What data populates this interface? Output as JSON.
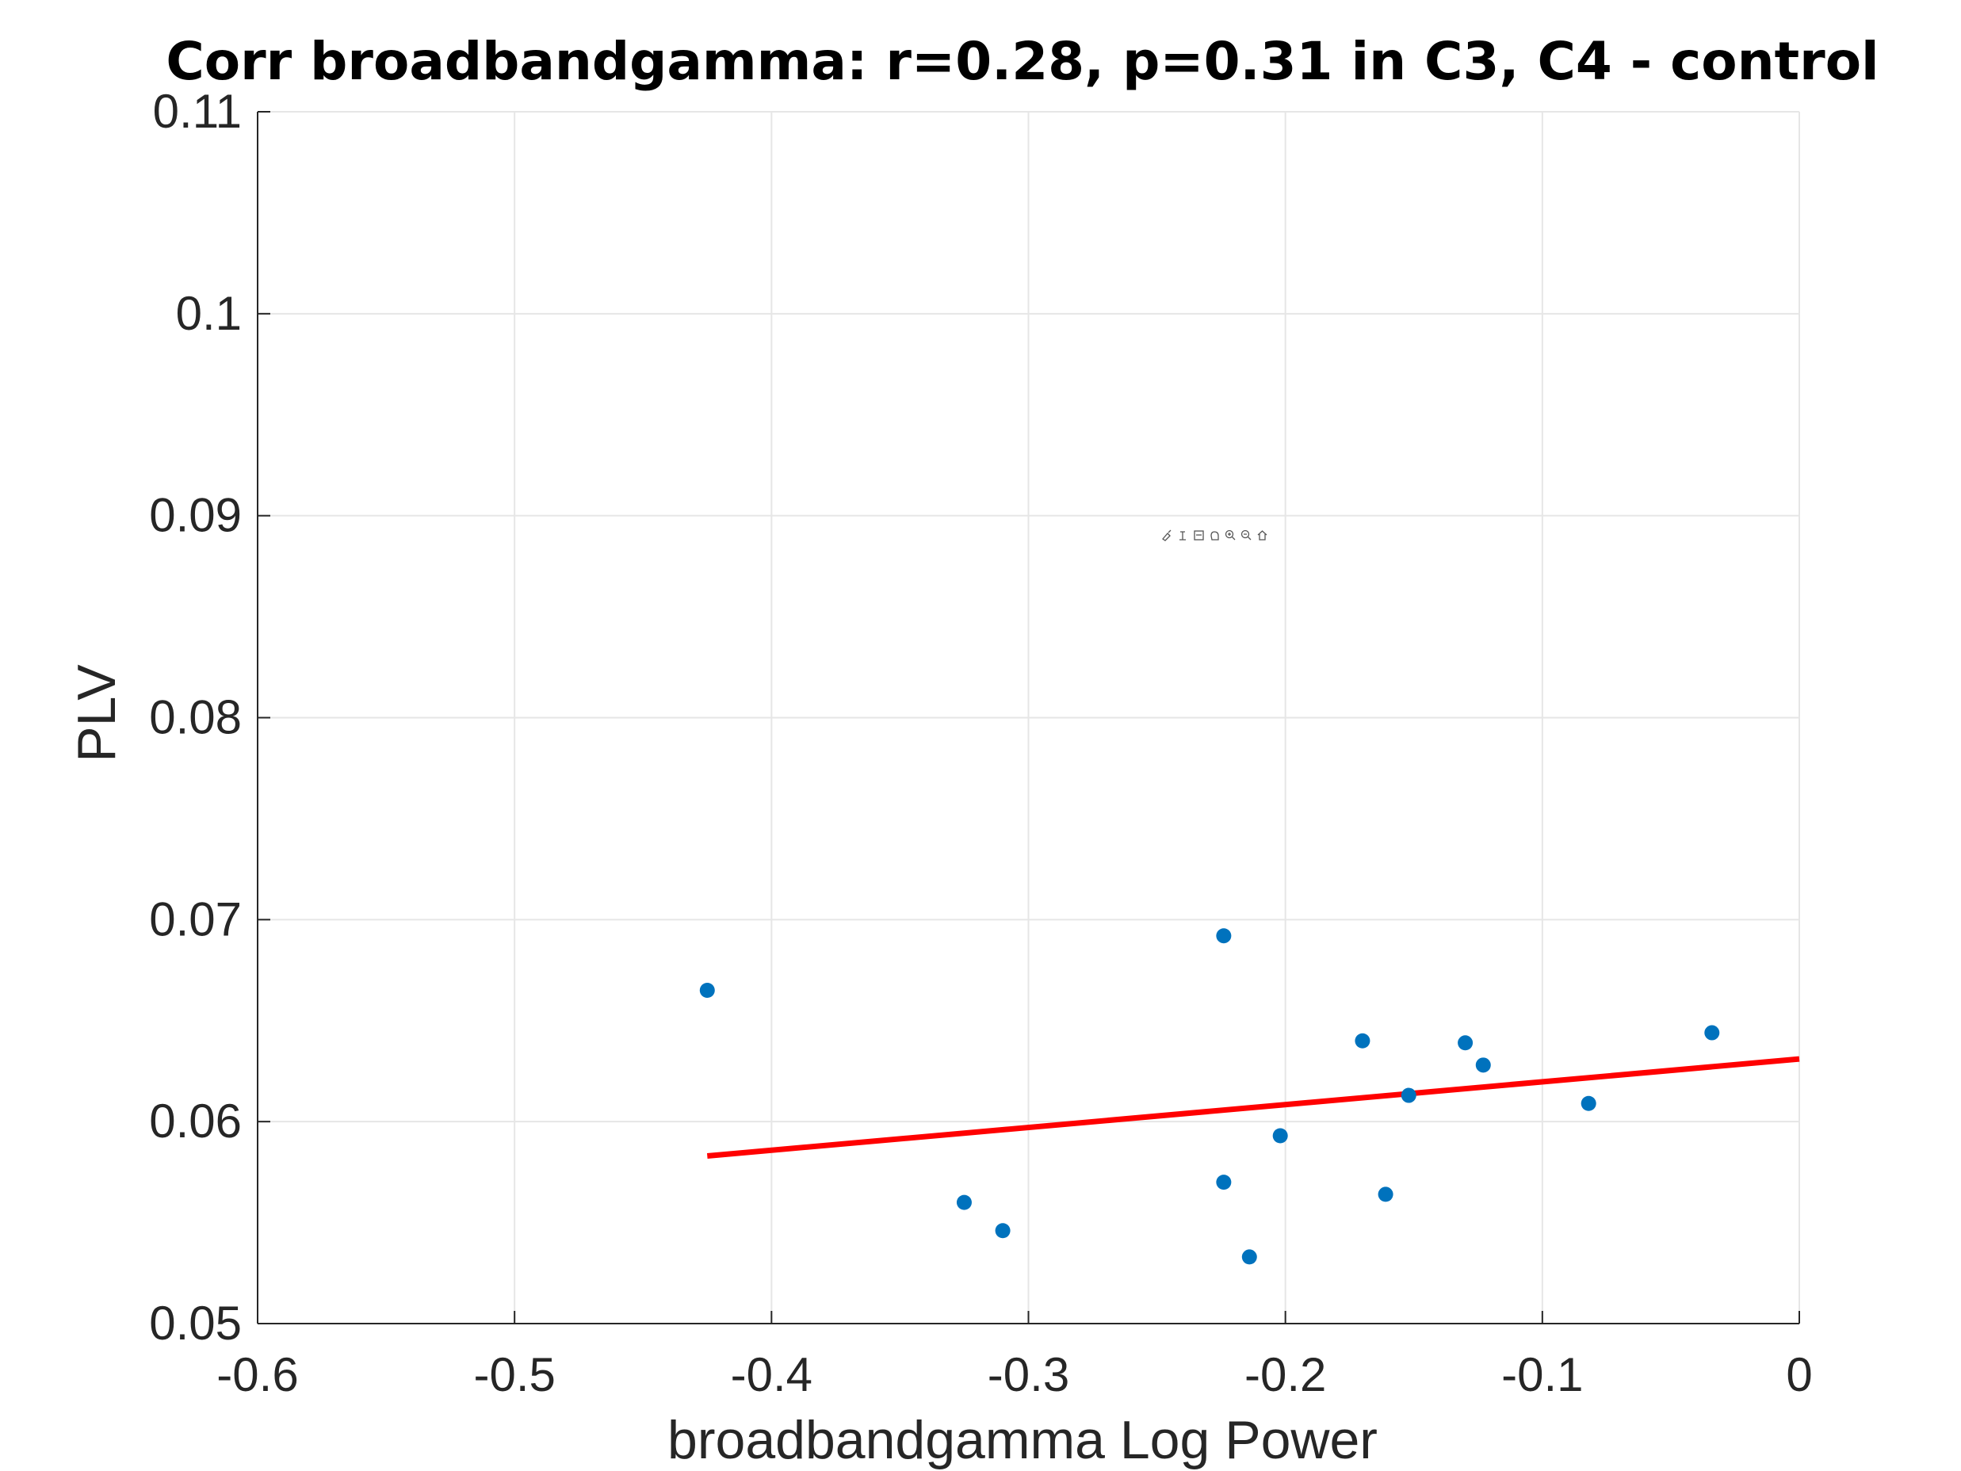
{
  "chart_data": {
    "type": "scatter",
    "title": "Corr broadbandgamma: r=0.28, p=0.31 in C3, C4 - control",
    "xlabel": "broadbandgamma Log Power",
    "ylabel": "PLV",
    "xlim": [
      -0.6,
      0
    ],
    "ylim": [
      0.05,
      0.11
    ],
    "xticks": [
      -0.6,
      -0.5,
      -0.4,
      -0.3,
      -0.2,
      -0.1,
      0
    ],
    "xtick_labels": [
      "-0.6",
      "-0.5",
      "-0.4",
      "-0.3",
      "-0.2",
      "-0.1",
      "0"
    ],
    "yticks": [
      0.05,
      0.06,
      0.07,
      0.08,
      0.09,
      0.1,
      0.11
    ],
    "ytick_labels": [
      "0.05",
      "0.06",
      "0.07",
      "0.08",
      "0.09",
      "0.1",
      "0.11"
    ],
    "grid": true,
    "points": {
      "color": "#0072BD",
      "x": [
        -0.425,
        -0.325,
        -0.31,
        -0.224,
        -0.224,
        -0.214,
        -0.202,
        -0.17,
        -0.161,
        -0.152,
        -0.13,
        -0.123,
        -0.082,
        -0.034
      ],
      "y": [
        0.0665,
        0.056,
        0.0546,
        0.0692,
        0.057,
        0.0533,
        0.0593,
        0.064,
        0.0564,
        0.0613,
        0.0639,
        0.0628,
        0.0609,
        0.0644
      ]
    },
    "fit_line": {
      "color": "#FF0000",
      "x": [
        -0.425,
        0
      ],
      "y": [
        0.0583,
        0.0631
      ]
    }
  },
  "toolbar": {
    "icons": [
      "brush-icon",
      "datatip-icon",
      "rotate-icon",
      "pan-icon",
      "zoom-in-icon",
      "zoom-out-icon",
      "home-icon"
    ]
  }
}
